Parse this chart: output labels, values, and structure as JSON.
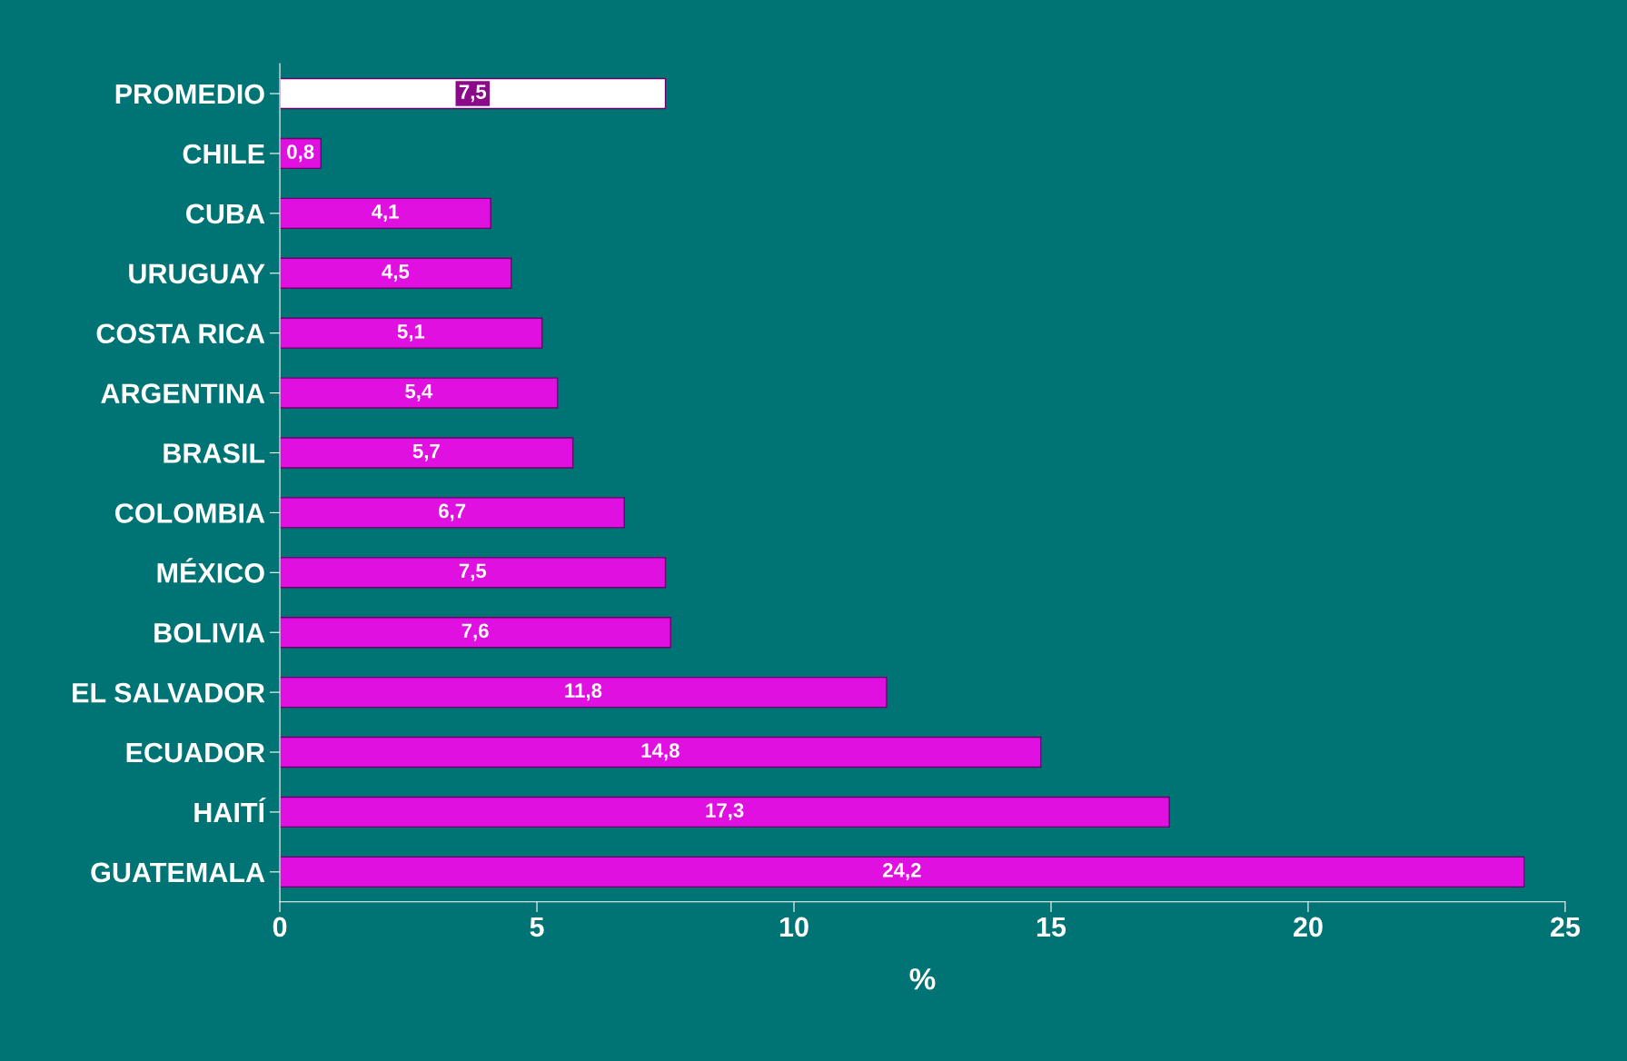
{
  "chart_data": {
    "type": "bar",
    "orientation": "horizontal",
    "xlabel": "%",
    "categories": [
      "PROMEDIO",
      "CHILE",
      "CUBA",
      "URUGUAY",
      "COSTA RICA",
      "ARGENTINA",
      "BRASIL",
      "COLOMBIA",
      "MÉXICO",
      "BOLIVIA",
      "EL SALVADOR",
      "ECUADOR",
      "HAITÍ",
      "GUATEMALA"
    ],
    "values": [
      7.5,
      0.8,
      4.1,
      4.5,
      5.1,
      5.4,
      5.7,
      6.7,
      7.5,
      7.6,
      11.8,
      14.8,
      17.3,
      24.2
    ],
    "value_labels": [
      "7,5",
      "0,8",
      "4,1",
      "4,5",
      "5,1",
      "5,4",
      "5,7",
      "6,7",
      "7,5",
      "7,6",
      "11,8",
      "14,8",
      "17,3",
      "24,2"
    ],
    "colors": [
      "#ffffff",
      "#e010e0",
      "#e010e0",
      "#e010e0",
      "#e010e0",
      "#e010e0",
      "#e010e0",
      "#e010e0",
      "#e010e0",
      "#e010e0",
      "#e010e0",
      "#e010e0",
      "#e010e0",
      "#e010e0"
    ],
    "xlim": [
      0,
      25
    ],
    "xticks": [
      0,
      5,
      10,
      15,
      20,
      25
    ],
    "grid": false
  }
}
